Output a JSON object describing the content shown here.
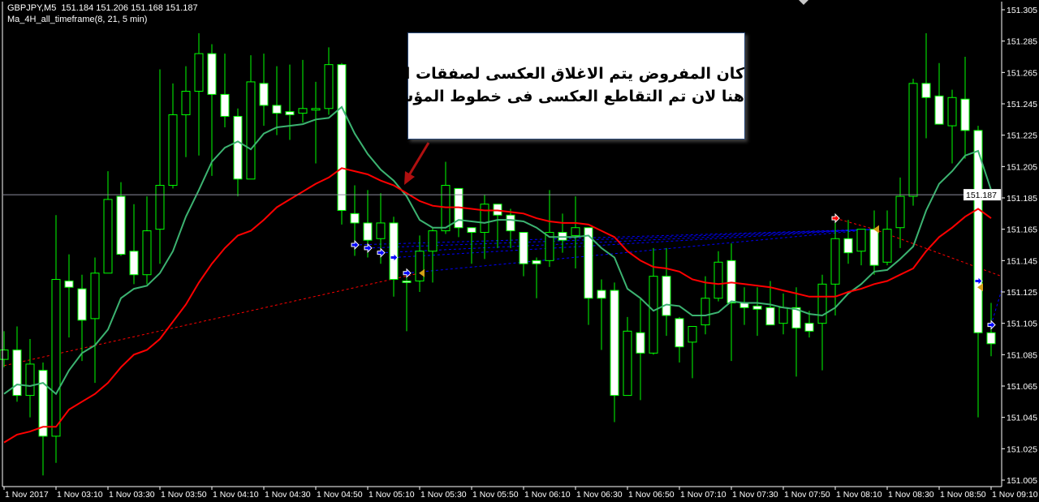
{
  "header": {
    "symbol_line": "GBPJPY,M5  151.184 151.206 151.168 151.187",
    "indicator_line": "Ma_4H_all_timeframe(8, 21, 5 min)"
  },
  "annotation": {
    "line1": "كان المفروض يتم الاغلاق العكسى لصفقات الشراء",
    "line2": "هنا لان تم التقاطع العكسى فى خطوط المؤشر"
  },
  "colors": {
    "background": "#000000",
    "candle_outline": "#00ff00",
    "bull_body": "#000000",
    "bear_body": "#ffffff",
    "ma_fast": "#3cb371",
    "ma_slow": "#ff0000",
    "current_price_line": "#8c8c9c",
    "buy_lines": "#0000ff",
    "sell_lines": "#ff0000",
    "close_marker": "#d4a017",
    "annotation_arrow": "#b01010"
  },
  "chart_data": {
    "type": "candlestick",
    "symbol": "GBPJPY",
    "timeframe": "M5",
    "ylim": [
      151.005,
      151.305
    ],
    "grid": false,
    "current_price": "151.187",
    "price_ticks": [
      "151.305",
      "151.285",
      "151.265",
      "151.245",
      "151.225",
      "151.205",
      "151.185",
      "151.165",
      "151.145",
      "151.125",
      "151.105",
      "151.085",
      "151.065",
      "151.045",
      "151.025",
      "151.005"
    ],
    "time_ticks": [
      {
        "t": "02:50",
        "label": "1 Nov 2017"
      },
      {
        "t": "03:10",
        "label": "1 Nov 03:10"
      },
      {
        "t": "03:30",
        "label": "1 Nov 03:30"
      },
      {
        "t": "03:50",
        "label": "1 Nov 03:50"
      },
      {
        "t": "04:10",
        "label": "1 Nov 04:10"
      },
      {
        "t": "04:30",
        "label": "1 Nov 04:30"
      },
      {
        "t": "04:50",
        "label": "1 Nov 04:50"
      },
      {
        "t": "05:10",
        "label": "1 Nov 05:10"
      },
      {
        "t": "05:30",
        "label": "1 Nov 05:30"
      },
      {
        "t": "05:50",
        "label": "1 Nov 05:50"
      },
      {
        "t": "06:10",
        "label": "1 Nov 06:10"
      },
      {
        "t": "06:30",
        "label": "1 Nov 06:30"
      },
      {
        "t": "06:50",
        "label": "1 Nov 06:50"
      },
      {
        "t": "07:10",
        "label": "1 Nov 07:10"
      },
      {
        "t": "07:30",
        "label": "1 Nov 07:30"
      },
      {
        "t": "07:50",
        "label": "1 Nov 07:50"
      },
      {
        "t": "08:10",
        "label": "1 Nov 08:10"
      },
      {
        "t": "08:30",
        "label": "1 Nov 08:30"
      },
      {
        "t": "08:50",
        "label": "1 Nov 08:50"
      },
      {
        "t": "09:10",
        "label": "1 Nov 09:10"
      }
    ],
    "candle_fields": [
      "time",
      "open",
      "high",
      "low",
      "close"
    ],
    "candles": [
      [
        "02:50",
        151.082,
        151.1,
        151.077,
        151.088
      ],
      [
        "02:55",
        151.088,
        151.103,
        151.055,
        151.059
      ],
      [
        "03:00",
        151.059,
        151.095,
        151.045,
        151.079
      ],
      [
        "03:05",
        151.075,
        151.08,
        151.008,
        151.033
      ],
      [
        "03:10",
        151.033,
        151.174,
        151.016,
        151.133
      ],
      [
        "03:15",
        151.132,
        151.149,
        151.096,
        151.128
      ],
      [
        "03:20",
        151.127,
        151.136,
        151.081,
        151.107
      ],
      [
        "03:25",
        151.108,
        151.147,
        151.067,
        151.137
      ],
      [
        "03:30",
        151.137,
        151.202,
        151.137,
        151.184
      ],
      [
        "03:35",
        151.186,
        151.195,
        151.148,
        151.149
      ],
      [
        "03:40",
        151.151,
        151.181,
        151.13,
        151.136
      ],
      [
        "03:45",
        151.136,
        151.186,
        151.13,
        151.164
      ],
      [
        "03:50",
        151.165,
        151.267,
        151.143,
        151.193
      ],
      [
        "03:55",
        151.193,
        151.258,
        151.191,
        151.238
      ],
      [
        "04:00",
        151.238,
        151.269,
        151.211,
        151.253
      ],
      [
        "04:05",
        151.253,
        151.29,
        151.212,
        151.277
      ],
      [
        "04:10",
        151.277,
        151.283,
        151.199,
        151.251
      ],
      [
        "04:15",
        151.251,
        151.277,
        151.23,
        151.237
      ],
      [
        "04:20",
        151.237,
        151.242,
        151.186,
        151.197
      ],
      [
        "04:25",
        151.197,
        151.276,
        151.197,
        151.259
      ],
      [
        "04:30",
        151.258,
        151.277,
        151.231,
        151.244
      ],
      [
        "04:35",
        151.244,
        151.269,
        151.225,
        151.239
      ],
      [
        "04:40",
        151.24,
        151.27,
        151.222,
        151.238
      ],
      [
        "04:45",
        151.239,
        151.273,
        151.233,
        151.242
      ],
      [
        "04:50",
        151.241,
        151.259,
        151.207,
        151.242
      ],
      [
        "04:55",
        151.242,
        151.281,
        151.238,
        151.27
      ],
      [
        "05:00",
        151.27,
        151.271,
        151.168,
        151.177
      ],
      [
        "05:05",
        151.175,
        151.193,
        151.148,
        151.169
      ],
      [
        "05:10",
        151.169,
        151.19,
        151.147,
        151.158
      ],
      [
        "05:15",
        151.159,
        151.188,
        151.143,
        151.169
      ],
      [
        "05:20",
        151.169,
        151.173,
        151.122,
        151.133
      ],
      [
        "05:25",
        151.132,
        151.134,
        151.1,
        151.131
      ],
      [
        "05:30",
        151.132,
        151.161,
        151.125,
        151.151
      ],
      [
        "05:35",
        151.151,
        151.166,
        151.131,
        151.164
      ],
      [
        "05:40",
        151.164,
        151.208,
        151.162,
        151.193
      ],
      [
        "05:45",
        151.191,
        151.191,
        151.16,
        151.166
      ],
      [
        "05:50",
        151.166,
        151.166,
        151.143,
        151.163
      ],
      [
        "05:55",
        151.163,
        151.187,
        151.146,
        151.181
      ],
      [
        "06:00",
        151.181,
        151.181,
        151.153,
        151.174
      ],
      [
        "06:05",
        151.174,
        151.178,
        151.153,
        151.164
      ],
      [
        "06:10",
        151.163,
        151.163,
        151.135,
        151.143
      ],
      [
        "06:15",
        151.145,
        151.147,
        151.121,
        151.143
      ],
      [
        "06:20",
        151.145,
        151.19,
        151.141,
        151.163
      ],
      [
        "06:25",
        151.163,
        151.175,
        151.15,
        151.158
      ],
      [
        "06:30",
        151.161,
        151.186,
        151.14,
        151.166
      ],
      [
        "06:35",
        151.166,
        151.166,
        151.104,
        151.121
      ],
      [
        "06:40",
        151.126,
        151.133,
        151.088,
        151.121
      ],
      [
        "06:45",
        151.126,
        151.131,
        151.042,
        151.059
      ],
      [
        "06:50",
        151.059,
        151.109,
        151.059,
        151.1
      ],
      [
        "06:55",
        151.099,
        151.121,
        151.056,
        151.086
      ],
      [
        "07:00",
        151.086,
        151.153,
        151.085,
        151.135
      ],
      [
        "07:05",
        151.135,
        151.153,
        151.097,
        151.11
      ],
      [
        "07:10",
        151.108,
        151.109,
        151.08,
        151.09
      ],
      [
        "07:15",
        151.093,
        151.103,
        151.07,
        151.103
      ],
      [
        "07:20",
        151.104,
        151.135,
        151.098,
        151.121
      ],
      [
        "07:25",
        151.121,
        151.151,
        151.119,
        151.144
      ],
      [
        "07:30",
        151.145,
        151.156,
        151.081,
        151.118
      ],
      [
        "07:35",
        151.118,
        151.128,
        151.104,
        151.115
      ],
      [
        "07:40",
        151.116,
        151.128,
        151.097,
        151.114
      ],
      [
        "07:45",
        151.115,
        151.132,
        151.104,
        151.104
      ],
      [
        "07:50",
        151.105,
        151.124,
        151.098,
        151.115
      ],
      [
        "07:55",
        151.115,
        151.128,
        151.071,
        151.102
      ],
      [
        "08:00",
        151.105,
        151.113,
        151.096,
        151.1
      ],
      [
        "08:05",
        151.105,
        151.136,
        151.075,
        151.13
      ],
      [
        "08:10",
        151.13,
        151.175,
        151.11,
        151.159
      ],
      [
        "08:15",
        151.159,
        151.171,
        151.143,
        151.15
      ],
      [
        "08:20",
        151.151,
        151.165,
        151.142,
        151.165
      ],
      [
        "08:25",
        151.165,
        151.177,
        151.136,
        151.142
      ],
      [
        "08:30",
        151.144,
        151.177,
        151.142,
        151.165
      ],
      [
        "08:35",
        151.166,
        151.198,
        151.153,
        151.186
      ],
      [
        "08:40",
        151.186,
        151.261,
        151.18,
        151.258
      ],
      [
        "08:45",
        151.258,
        151.29,
        151.223,
        151.249
      ],
      [
        "08:50",
        151.25,
        151.271,
        151.232,
        151.232
      ],
      [
        "08:55",
        151.231,
        151.254,
        151.207,
        151.249
      ],
      [
        "09:00",
        151.248,
        151.275,
        151.21,
        151.228
      ],
      [
        "09:05",
        151.228,
        151.231,
        151.045,
        151.099
      ],
      [
        "09:10",
        151.099,
        151.118,
        151.084,
        151.092
      ]
    ],
    "ma_fast": [
      151.06,
      151.066,
      151.065,
      151.067,
      151.06,
      151.075,
      151.086,
      151.091,
      151.101,
      151.121,
      151.127,
      151.129,
      151.137,
      151.151,
      151.173,
      151.19,
      151.208,
      151.217,
      151.221,
      151.216,
      151.226,
      151.23,
      151.231,
      151.232,
      151.235,
      151.236,
      151.243,
      151.226,
      151.213,
      151.203,
      151.196,
      151.186,
      151.171,
      151.166,
      151.166,
      151.171,
      151.17,
      151.169,
      151.171,
      151.171,
      151.17,
      151.166,
      151.16,
      151.16,
      151.16,
      151.161,
      151.153,
      151.147,
      151.127,
      151.121,
      151.113,
      151.117,
      151.116,
      151.11,
      151.11,
      151.112,
      151.119,
      151.118,
      151.118,
      151.117,
      151.115,
      151.114,
      151.111,
      151.11,
      151.115,
      151.124,
      151.13,
      151.138,
      151.139,
      151.146,
      151.154,
      151.177,
      151.194,
      151.202,
      151.212,
      151.215,
      151.19
    ],
    "ma_slow": [
      151.029,
      151.034,
      151.036,
      151.039,
      151.039,
      151.05,
      151.055,
      151.06,
      151.067,
      151.077,
      151.085,
      151.088,
      151.095,
      151.106,
      151.117,
      151.131,
      151.143,
      151.153,
      151.161,
      151.164,
      151.171,
      151.179,
      151.184,
      151.189,
      151.194,
      151.198,
      151.204,
      151.202,
      151.2,
      151.196,
      151.193,
      151.188,
      151.183,
      151.18,
      151.179,
      151.179,
      151.178,
      151.177,
      151.177,
      151.176,
      151.175,
      151.172,
      151.17,
      151.169,
      151.169,
      151.168,
      151.164,
      151.16,
      151.151,
      151.145,
      151.141,
      151.14,
      151.138,
      151.133,
      151.131,
      151.13,
      151.131,
      151.13,
      151.129,
      151.128,
      151.126,
      151.124,
      151.122,
      151.122,
      151.122,
      151.125,
      151.127,
      151.13,
      151.132,
      151.136,
      151.14,
      151.151,
      151.16,
      151.166,
      151.173,
      151.178,
      151.172
    ],
    "trade_lines": [
      {
        "type": "buy",
        "from": [
          "05:05",
          151.155
        ],
        "to": [
          "08:25",
          151.165
        ]
      },
      {
        "type": "buy",
        "from": [
          "05:10",
          151.153
        ],
        "to": [
          "08:25",
          151.165
        ]
      },
      {
        "type": "buy",
        "from": [
          "05:15",
          151.15
        ],
        "to": [
          "08:25",
          151.165
        ]
      },
      {
        "type": "buy",
        "from": [
          "05:20",
          151.147
        ],
        "to": [
          "08:25",
          151.165
        ]
      },
      {
        "type": "buy",
        "from": [
          "05:25",
          151.137
        ],
        "to": [
          "08:25",
          151.165
        ]
      },
      {
        "type": "sell",
        "from": [
          "02:50",
          151.078
        ],
        "to": [
          "05:30",
          151.137
        ]
      },
      {
        "type": "sell",
        "from": [
          "08:10",
          151.172
        ],
        "to": [
          "08:25",
          151.165
        ]
      },
      {
        "type": "sell",
        "from": [
          "08:25",
          151.165
        ],
        "to": [
          "09:14",
          151.135
        ]
      },
      {
        "type": "buy",
        "from": [
          "09:10",
          151.104
        ],
        "to": [
          "09:14",
          151.126
        ]
      }
    ],
    "markers": [
      {
        "type": "buy",
        "t": "05:05",
        "price": 151.155
      },
      {
        "type": "buy",
        "t": "05:10",
        "price": 151.153
      },
      {
        "type": "buy",
        "t": "05:15",
        "price": 151.15
      },
      {
        "type": "buy",
        "t": "05:20",
        "price": 151.147
      },
      {
        "type": "buy",
        "t": "05:25",
        "price": 151.137
      },
      {
        "type": "close",
        "t": "05:30",
        "price": 151.137
      },
      {
        "type": "sell",
        "t": "08:10",
        "price": 151.172
      },
      {
        "type": "close",
        "t": "08:25",
        "price": 151.165
      },
      {
        "type": "buy",
        "t": "09:05",
        "price": 151.132
      },
      {
        "type": "close",
        "t": "09:05",
        "price": 151.128
      },
      {
        "type": "buy",
        "t": "09:10",
        "price": 151.104
      }
    ]
  }
}
